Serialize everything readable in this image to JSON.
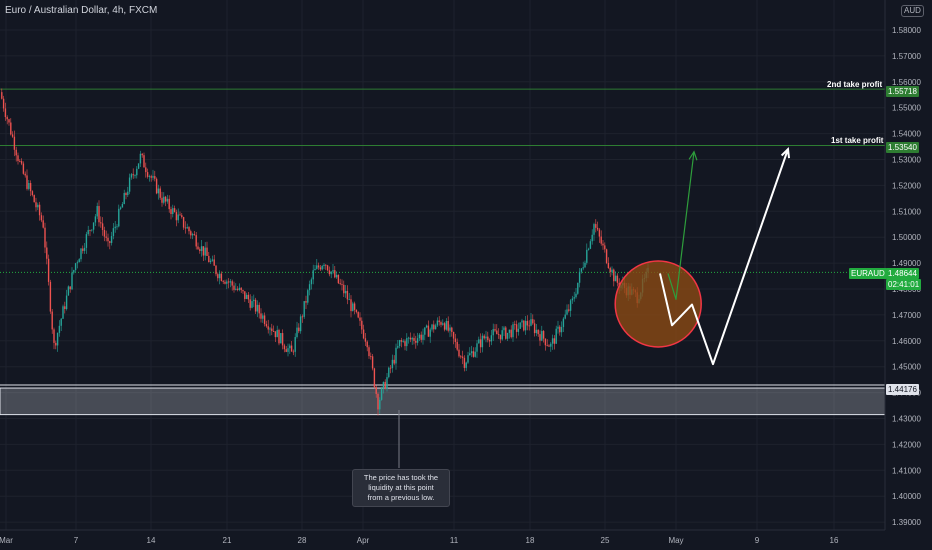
{
  "header": {
    "title": "Euro / Australian Dollar, 4h, FXCM",
    "currency": "AUD"
  },
  "annotation": {
    "note_lines": [
      "The price has took the",
      "liquidity at this point",
      "from a previous low."
    ],
    "tp1_label": "1st take profit",
    "tp2_label": "2nd take profit"
  },
  "price_tags": {
    "tp2": "1.55718",
    "tp1": "1.53540",
    "symbol": "EURAUD",
    "last": "1.48644",
    "countdown": "02:41:01",
    "zone": "1.44176"
  },
  "colors": {
    "background": "#131722",
    "up_candle": "#26a69a",
    "down_candle": "#ef5350",
    "green_line": "#4caf50",
    "circle_fill": "#8d4a13",
    "circle_stroke": "#f23645",
    "zone_fill": "#d1d4dc",
    "projection_white": "#ffffff",
    "projection_green": "#2e9e3c"
  },
  "chart_data": {
    "type": "candlestick",
    "symbol": "EURAUD",
    "timeframe": "4h",
    "ylim": [
      1.385,
      1.594
    ],
    "y_ticks": [
      "1.39000",
      "1.40000",
      "1.41000",
      "1.42000",
      "1.43000",
      "1.44000",
      "1.45000",
      "1.46000",
      "1.47000",
      "1.48000",
      "1.49000",
      "1.50000",
      "1.51000",
      "1.52000",
      "1.53000",
      "1.54000",
      "1.55000",
      "1.56000",
      "1.57000",
      "1.58000"
    ],
    "x_ticks": [
      "Mar",
      "7",
      "14",
      "21",
      "28",
      "Apr",
      "11",
      "18",
      "25",
      "May",
      "9",
      "16"
    ],
    "path": [
      {
        "d": "Mar 1",
        "p": 1.556
      },
      {
        "d": "Mar 3",
        "p": 1.526
      },
      {
        "d": "Mar 5",
        "p": 1.505
      },
      {
        "d": "Mar 6",
        "p": 1.458
      },
      {
        "d": "Mar 8",
        "p": 1.49
      },
      {
        "d": "Mar 10",
        "p": 1.51
      },
      {
        "d": "Mar 11",
        "p": 1.496
      },
      {
        "d": "Mar 13",
        "p": 1.521
      },
      {
        "d": "Mar 14",
        "p": 1.531
      },
      {
        "d": "Mar 16",
        "p": 1.515
      },
      {
        "d": "Mar 19",
        "p": 1.5
      },
      {
        "d": "Mar 21",
        "p": 1.487
      },
      {
        "d": "Mar 24",
        "p": 1.476
      },
      {
        "d": "Mar 26",
        "p": 1.466
      },
      {
        "d": "Mar 28",
        "p": 1.455
      },
      {
        "d": "Mar 30",
        "p": 1.486
      },
      {
        "d": "Mar 31",
        "p": 1.491
      },
      {
        "d": "Apr 2",
        "p": 1.478
      },
      {
        "d": "Apr 4",
        "p": 1.46
      },
      {
        "d": "Apr 5",
        "p": 1.436
      },
      {
        "d": "Apr 7",
        "p": 1.459
      },
      {
        "d": "Apr 9",
        "p": 1.462
      },
      {
        "d": "Apr 11",
        "p": 1.468
      },
      {
        "d": "Apr 13",
        "p": 1.452
      },
      {
        "d": "Apr 15",
        "p": 1.462
      },
      {
        "d": "Apr 17",
        "p": 1.463
      },
      {
        "d": "Apr 19",
        "p": 1.467
      },
      {
        "d": "Apr 21",
        "p": 1.458
      },
      {
        "d": "Apr 23",
        "p": 1.475
      },
      {
        "d": "Apr 25",
        "p": 1.505
      },
      {
        "d": "Apr 27",
        "p": 1.483
      },
      {
        "d": "Apr 29",
        "p": 1.477
      },
      {
        "d": "Apr 30",
        "p": 1.486
      }
    ],
    "last_price": 1.48644,
    "levels": {
      "tp1": 1.5354,
      "tp2": 1.55718,
      "zone_top": 1.44176,
      "zone_bottom": 1.4315
    },
    "projection_white": [
      {
        "d": "Apr 30",
        "p": 1.486
      },
      {
        "d": "May 1",
        "p": 1.466
      },
      {
        "d": "May 3",
        "p": 1.474
      },
      {
        "d": "May 5",
        "p": 1.451
      },
      {
        "d": "May 12",
        "p": 1.534
      }
    ],
    "projection_green": [
      {
        "d": "May 1",
        "p": 1.486
      },
      {
        "d": "May 3",
        "p": 1.476
      },
      {
        "d": "May 9",
        "p": 1.533
      }
    ],
    "circle_center": {
      "d": "Apr 29",
      "p": 1.475
    }
  }
}
